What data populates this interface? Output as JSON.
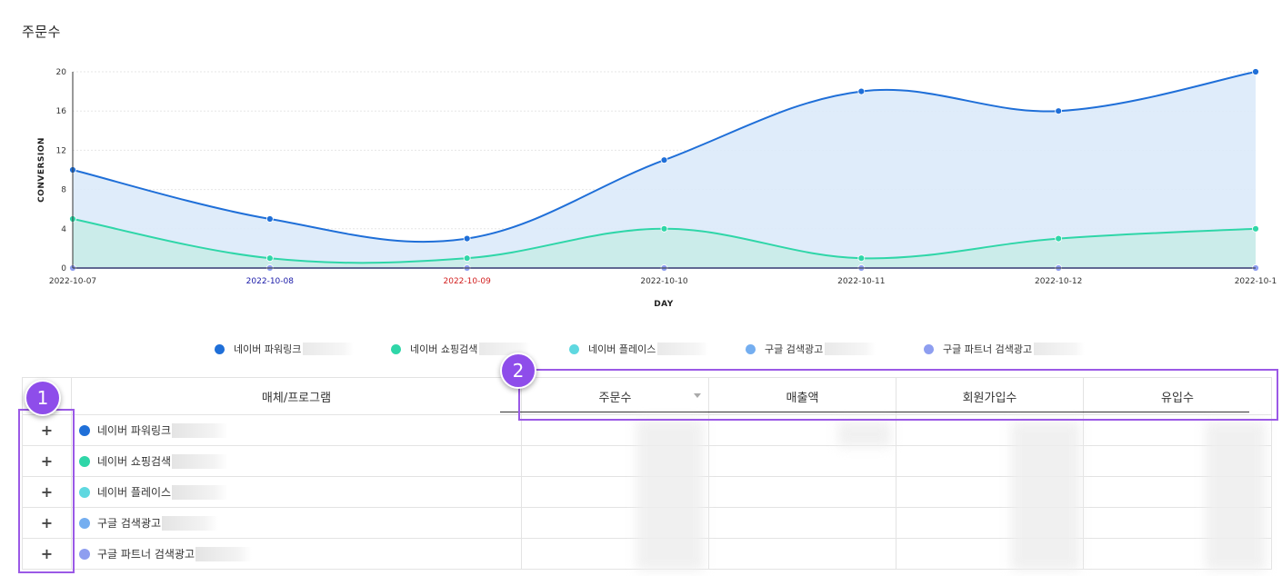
{
  "page": {
    "title": "주문수"
  },
  "chart_data": {
    "type": "area",
    "title": "",
    "xlabel": "DAY",
    "ylabel": "CONVERSION",
    "ylim": [
      0,
      20
    ],
    "yticks": [
      0,
      4,
      8,
      12,
      16,
      20
    ],
    "grid": true,
    "categories": [
      "2022-10-07",
      "2022-10-08",
      "2022-10-09",
      "2022-10-10",
      "2022-10-11",
      "2022-10-12",
      "2022-10-1"
    ],
    "category_colors": [
      "#333333",
      "#1a1aa8",
      "#d21e1e",
      "#333333",
      "#333333",
      "#333333",
      "#333333"
    ],
    "series": [
      {
        "name": "네이버 파워링크",
        "color": "#1f6fd8",
        "fill": "#dceafa",
        "values": [
          10,
          5,
          3,
          11,
          18,
          16,
          20
        ]
      },
      {
        "name": "네이버 쇼핑검색",
        "color": "#2fd6a8",
        "fill": "#c9ece8",
        "values": [
          5,
          1,
          1,
          4,
          1,
          3,
          4
        ]
      },
      {
        "name": "네이버 플레이스",
        "color": "#5fd8e0",
        "fill": "none",
        "values": [
          0,
          0,
          0,
          0,
          0,
          0,
          0
        ]
      },
      {
        "name": "구글 검색광고",
        "color": "#74aef0",
        "fill": "none",
        "values": [
          0,
          0,
          0,
          0,
          0,
          0,
          0
        ]
      },
      {
        "name": "구글 파트너 검색광고",
        "color": "#8e9ef0",
        "fill": "none",
        "values": [
          0,
          0,
          0,
          0,
          0,
          0,
          0
        ]
      }
    ],
    "legend_position": "bottom"
  },
  "table": {
    "columns": [
      "매체/프로그램",
      "주문수",
      "매출액",
      "회원가입수",
      "유입수"
    ],
    "rows": [
      {
        "expand": "+",
        "name": "네이버 파워링크",
        "color": "#1f6fd8"
      },
      {
        "expand": "+",
        "name": "네이버 쇼핑검색",
        "color": "#2fd6a8"
      },
      {
        "expand": "+",
        "name": "네이버 플레이스",
        "color": "#5fd8e0"
      },
      {
        "expand": "+",
        "name": "구글 검색광고",
        "color": "#74aef0"
      },
      {
        "expand": "+",
        "name": "구글 파트너 검색광고",
        "color": "#8e9ef0"
      }
    ]
  },
  "annotations": {
    "badge1": "1",
    "badge2": "2",
    "highlight_color": "#9b59e6"
  }
}
